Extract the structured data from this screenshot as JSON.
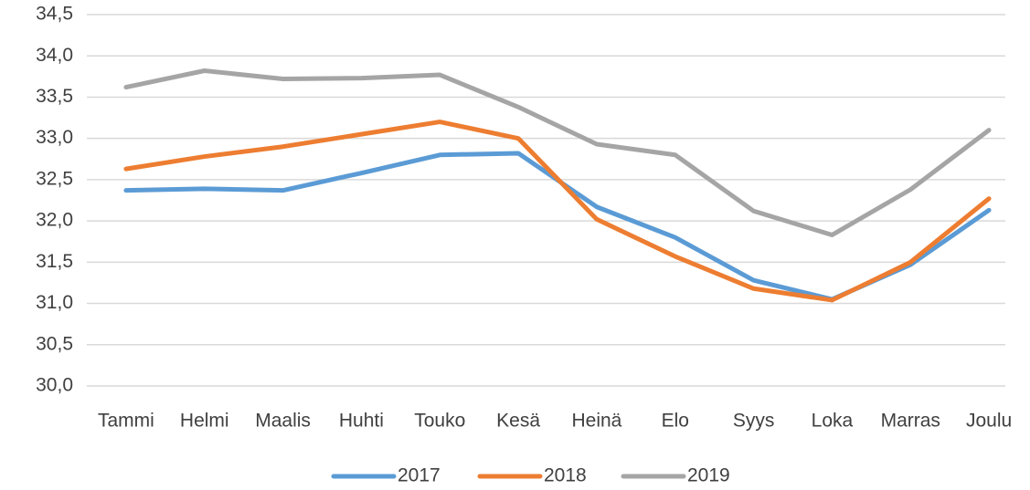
{
  "chart_data": {
    "type": "line",
    "categories": [
      "Tammi",
      "Helmi",
      "Maalis",
      "Huhti",
      "Touko",
      "Kesä",
      "Heinä",
      "Elo",
      "Syys",
      "Loka",
      "Marras",
      "Joulu"
    ],
    "series": [
      {
        "name": "2017",
        "color": "#5b9bd5",
        "values": [
          32.37,
          32.39,
          32.37,
          32.58,
          32.8,
          32.82,
          32.17,
          31.8,
          31.28,
          31.05,
          31.47,
          32.13
        ]
      },
      {
        "name": "2018",
        "color": "#ed7d31",
        "values": [
          32.63,
          32.78,
          32.9,
          33.05,
          33.2,
          33.0,
          32.02,
          31.57,
          31.18,
          31.04,
          31.5,
          32.27
        ]
      },
      {
        "name": "2019",
        "color": "#a5a5a5",
        "values": [
          33.62,
          33.82,
          33.72,
          33.73,
          33.77,
          33.38,
          32.93,
          32.8,
          32.12,
          31.83,
          32.38,
          33.1
        ]
      }
    ],
    "ylim": [
      30,
      34.5
    ],
    "yticks": [
      {
        "value": 30,
        "label": "30,0"
      },
      {
        "value": 30.5,
        "label": "30,5"
      },
      {
        "value": 31,
        "label": "31,0"
      },
      {
        "value": 31.5,
        "label": "31,5"
      },
      {
        "value": 32,
        "label": "32,0"
      },
      {
        "value": 32.5,
        "label": "32,5"
      },
      {
        "value": 33,
        "label": "33,0"
      },
      {
        "value": 33.5,
        "label": "33,5"
      },
      {
        "value": 34,
        "label": "34,0"
      },
      {
        "value": 34.5,
        "label": "34,5"
      }
    ],
    "grid": true,
    "legend": "bottom"
  }
}
